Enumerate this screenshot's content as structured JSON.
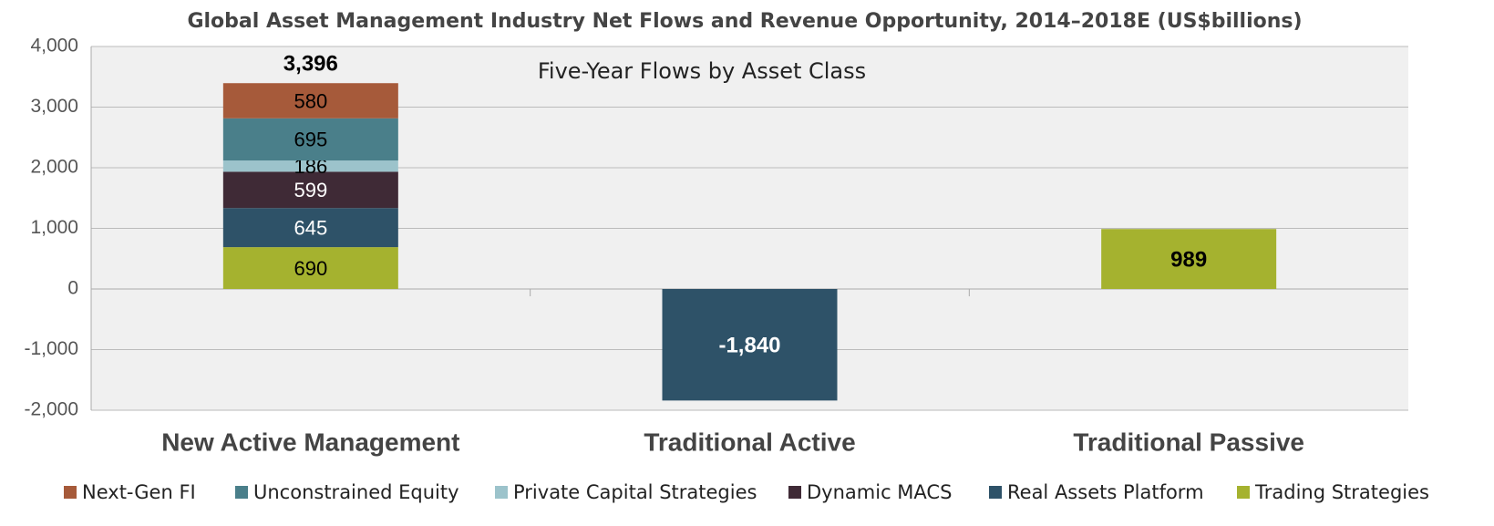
{
  "chart_data": {
    "type": "stacked_bar",
    "title": "Global Asset Management Industry Net Flows and Revenue Opportunity, 2014–2018E (US$billions)",
    "subtitle": "Five-Year Flows by Asset Class",
    "categories": [
      "New Active Management",
      "Traditional Active",
      "Traditional Passive"
    ],
    "series": [
      {
        "name": "Next-Gen FI",
        "color": "#a65a3a",
        "label_color": "#000000",
        "values": [
          580,
          null,
          null
        ]
      },
      {
        "name": "Unconstrained Equity",
        "color": "#4a7f8a",
        "label_color": "#000000",
        "values": [
          695,
          null,
          null
        ]
      },
      {
        "name": "Private Capital Strategies",
        "color": "#9cc3cb",
        "label_color": "#000000",
        "values": [
          186,
          null,
          null
        ]
      },
      {
        "name": "Dynamic MACS",
        "color": "#3f2a36",
        "label_color": "#ffffff",
        "values": [
          599,
          null,
          null
        ]
      },
      {
        "name": "Real Assets Platform",
        "color": "#2e5268",
        "label_color": "#ffffff",
        "values": [
          645,
          -1840,
          null
        ],
        "value_labels": [
          "645",
          "-1,840",
          null
        ]
      },
      {
        "name": "Trading Strategies",
        "color": "#a5b22f",
        "label_color": "#000000",
        "values": [
          690,
          null,
          989
        ]
      }
    ],
    "totals": [
      3396,
      null,
      null
    ],
    "total_labels": [
      "3,396",
      null,
      null
    ],
    "ylim": [
      -2000,
      4000
    ],
    "yticks": [
      {
        "value": -2000,
        "label": "-2,000"
      },
      {
        "value": -1000,
        "label": "-1,000"
      },
      0,
      {
        "value": 1000,
        "label": "1,000"
      },
      {
        "value": 2000,
        "label": "2,000"
      },
      {
        "value": 3000,
        "label": "3,000"
      },
      {
        "value": 4000,
        "label": "4,000"
      }
    ],
    "grid": true
  }
}
